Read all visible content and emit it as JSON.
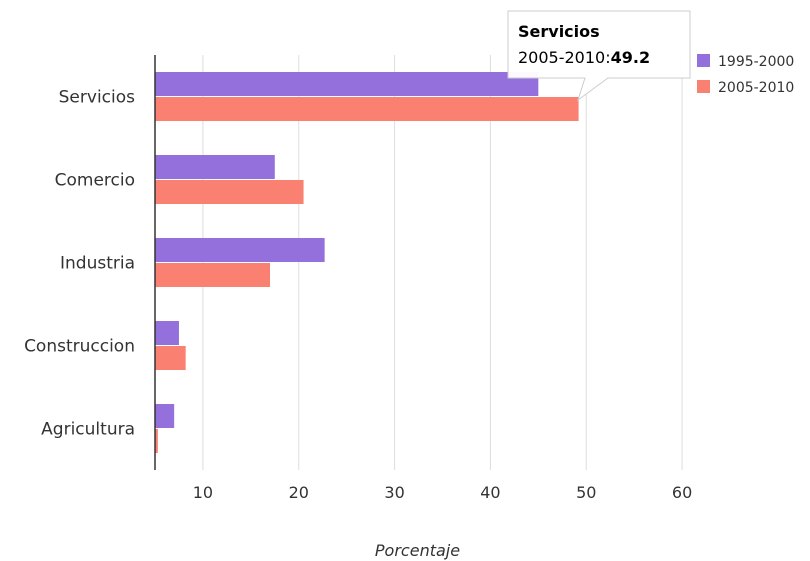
{
  "chart_data": {
    "type": "bar",
    "orientation": "horizontal",
    "categories": [
      "Servicios",
      "Comercio",
      "Industria",
      "Construccion",
      "Agricultura"
    ],
    "series": [
      {
        "name": "1995-2000",
        "color": "#9370db",
        "values": [
          45.0,
          17.5,
          22.7,
          7.5,
          7.0
        ]
      },
      {
        "name": "2005-2010",
        "color": "#fa8072",
        "values": [
          49.2,
          20.5,
          17.0,
          8.2,
          5.3
        ]
      }
    ],
    "xlabel": "Porcentaje",
    "xlim": [
      5,
      65
    ],
    "xticks": [
      10,
      20,
      30,
      40,
      50,
      60
    ],
    "grid": "vertical",
    "legend_position": "right"
  },
  "tooltip": {
    "title": "Servicios",
    "series_label": "2005-2010:",
    "value": "49.2"
  }
}
